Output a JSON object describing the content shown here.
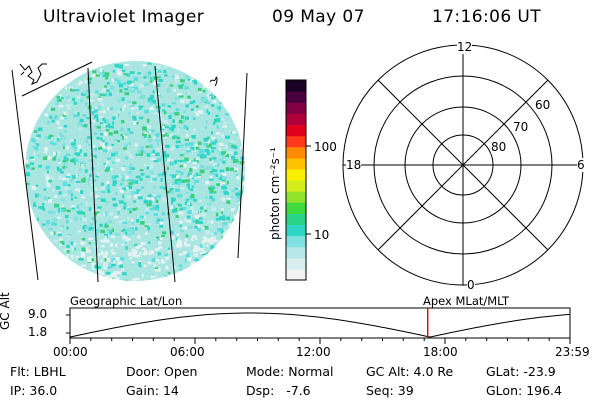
{
  "header": {
    "instrument": "Ultraviolet Imager",
    "date": "09 May 07",
    "time": "17:16:06 UT"
  },
  "colorbar": {
    "label": "photon cm⁻²s⁻¹",
    "ticks": [
      "100",
      "10"
    ],
    "scale": "log",
    "colors": [
      "#f2f2f2",
      "#d8eeee",
      "#b8e8e8",
      "#7fe0e0",
      "#2fd6c6",
      "#2ad38a",
      "#3fdb3f",
      "#8fe32a",
      "#d4ee1d",
      "#f8f000",
      "#ffc000",
      "#ff8a00",
      "#ff3a1a",
      "#e0001e",
      "#b0003a",
      "#800045",
      "#4a0040",
      "#1a0024"
    ]
  },
  "polar_plot": {
    "mlt_labels": {
      "top": "12",
      "right": "6",
      "bottom": "0",
      "left": "18"
    },
    "lat_labels": [
      "60",
      "70",
      "80"
    ]
  },
  "timeline": {
    "y_axis_label": "GC Alt",
    "y_ticks": [
      "9.0",
      "1.8"
    ],
    "left_title": "Geographic Lat/Lon",
    "right_title": "Apex  MLat/MLT",
    "x_ticks": [
      "00:00",
      "06:00",
      "12:00",
      "18:00",
      "23:59"
    ],
    "current_time_fraction": 0.7153,
    "marker_color": "#e00000"
  },
  "metadata": [
    [
      {
        "key": "Flt:",
        "value": "LBHL"
      },
      {
        "key": "IP:",
        "value": "36.0"
      }
    ],
    [
      {
        "key": "Door:",
        "value": "Open"
      },
      {
        "key": "Gain:",
        "value": "14"
      }
    ],
    [
      {
        "key": "Mode:",
        "value": "Normal"
      },
      {
        "key": "Dsp:",
        "value": "  -7.6"
      }
    ],
    [
      {
        "key": "GC Alt:",
        "value": "4.0 Re"
      },
      {
        "key": "Seq:",
        "value": "39"
      }
    ],
    [
      {
        "key": "GLat:",
        "value": "-23.9"
      },
      {
        "key": "GLon:",
        "value": "196.4"
      }
    ]
  ]
}
